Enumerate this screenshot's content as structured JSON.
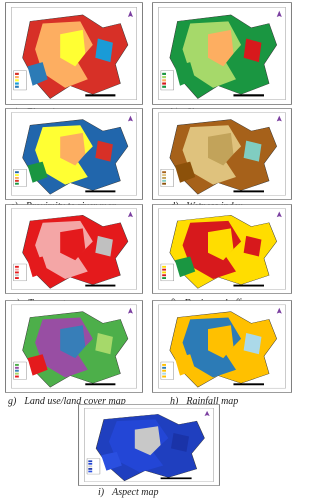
{
  "panels": [
    {
      "label": "a)",
      "caption": "Elevation map"
    },
    {
      "label": "b)",
      "caption": "Slope map"
    },
    {
      "label": "c)",
      "caption": "Proximity to river map"
    },
    {
      "label": "d)",
      "caption": "Wetness index"
    },
    {
      "label": "e)",
      "caption": "Temperature map"
    },
    {
      "label": "f)",
      "caption": "Drainage buffer map"
    },
    {
      "label": "g)",
      "caption": "Land use/land cover map"
    },
    {
      "label": "h)",
      "caption": "Rainfall map"
    },
    {
      "label": "i)",
      "caption": "Aspect map"
    }
  ]
}
